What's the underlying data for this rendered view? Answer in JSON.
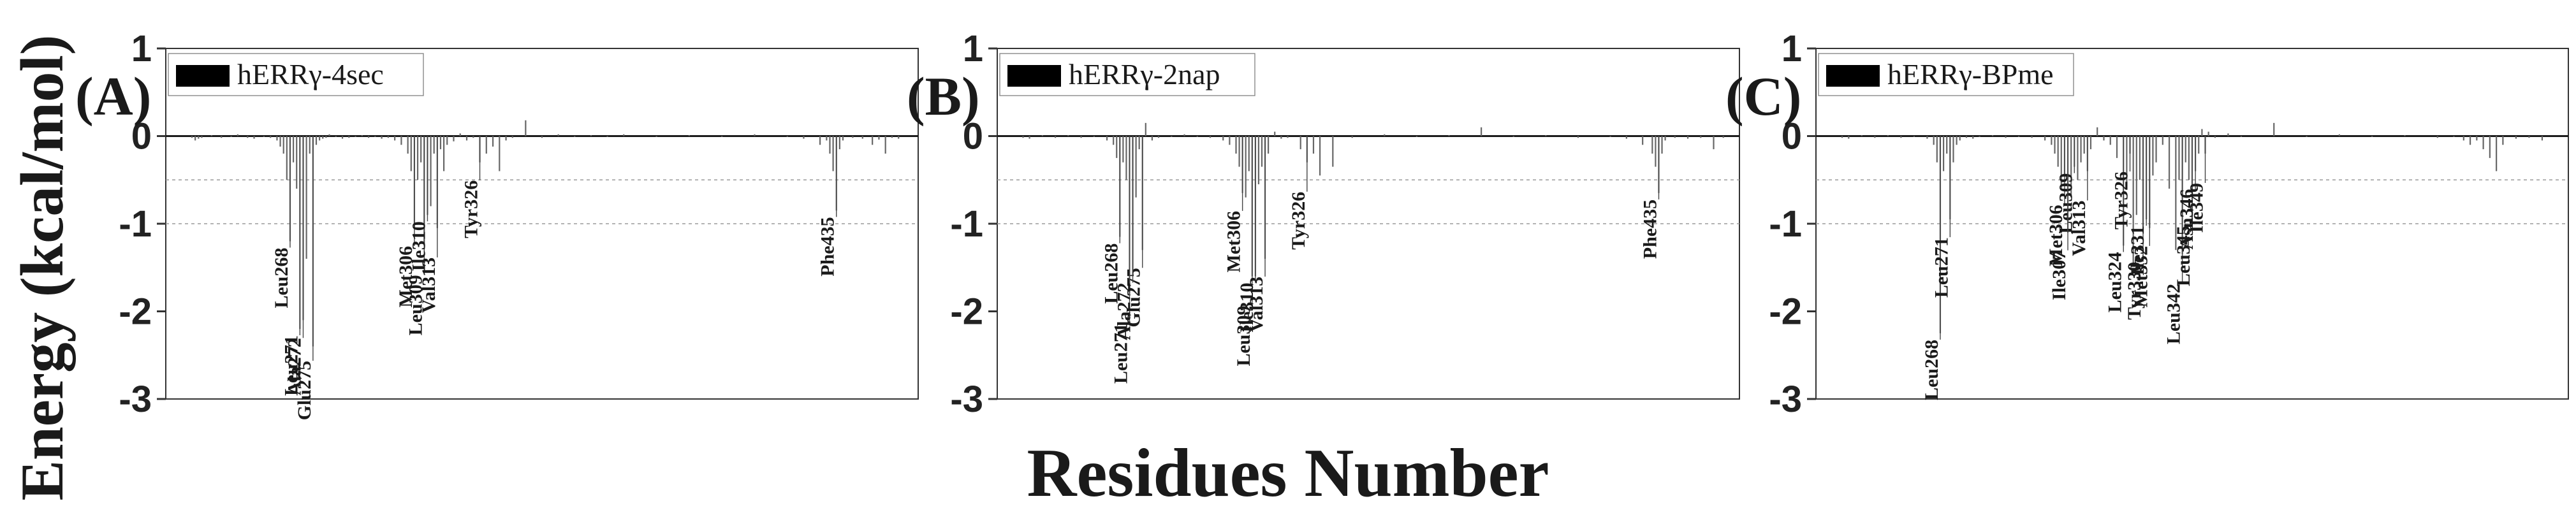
{
  "figure": {
    "ylabel": "Energy (kcal/mol)",
    "xlabel": "Residues Number"
  },
  "chart_data": [
    {
      "type": "bar",
      "panel_label": "(A)",
      "legend": "hERRγ-4sec",
      "legend_position": "top-left",
      "ylim": [
        -3,
        1
      ],
      "yticks": [
        "1",
        "0",
        "-1",
        "-2",
        "-3"
      ],
      "ylabel": "Energy (kcal/mol)",
      "xlabel": "Residues Number",
      "xlim": [
        230,
        460
      ],
      "reference_lines": [
        -0.5,
        -1.0
      ],
      "residues": [
        238,
        239,
        240,
        241,
        244,
        247,
        250,
        252,
        255,
        257,
        260,
        262,
        264,
        265,
        266,
        267,
        268,
        269,
        270,
        271,
        272,
        273,
        274,
        275,
        276,
        277,
        278,
        279,
        280,
        282,
        284,
        286,
        288,
        290,
        292,
        294,
        296,
        298,
        300,
        302,
        304,
        305,
        306,
        307,
        308,
        309,
        310,
        311,
        312,
        313,
        314,
        315,
        316,
        318,
        320,
        322,
        324,
        326,
        328,
        330,
        332,
        334,
        336,
        340,
        345,
        350,
        355,
        360,
        365,
        370,
        380,
        390,
        400,
        410,
        420,
        425,
        430,
        432,
        433,
        434,
        435,
        436,
        437,
        440,
        443,
        446,
        448,
        450,
        452,
        454
      ],
      "values": [
        -0.02,
        -0.05,
        -0.03,
        -0.02,
        0.01,
        -0.02,
        -0.01,
        0.02,
        -0.02,
        -0.03,
        -0.01,
        -0.02,
        -0.05,
        -0.12,
        -0.2,
        -0.5,
        -1.2,
        -0.3,
        -0.6,
        -2.2,
        -2.1,
        -1.4,
        -0.2,
        -2.4,
        -0.1,
        -0.05,
        -0.03,
        -0.02,
        0.02,
        -0.01,
        -0.03,
        -0.02,
        -0.01,
        0.01,
        -0.02,
        -0.01,
        -0.03,
        -0.02,
        -0.05,
        -0.1,
        -0.2,
        -0.4,
        -1.05,
        -0.5,
        -0.3,
        -1.25,
        -0.9,
        -0.8,
        -0.2,
        -1.05,
        -0.15,
        -0.4,
        -0.1,
        -0.06,
        0.03,
        -0.05,
        -0.02,
        -0.3,
        -0.2,
        -0.12,
        -0.4,
        -0.05,
        -0.02,
        0.18,
        -0.02,
        0.02,
        -0.01,
        0.01,
        -0.01,
        0.02,
        -0.01,
        0.01,
        -0.01,
        0.02,
        -0.01,
        -0.03,
        -0.1,
        -0.05,
        -0.2,
        -0.4,
        -0.85,
        -0.15,
        -0.05,
        -0.02,
        -0.03,
        -0.1,
        -0.04,
        -0.2,
        -0.02,
        -0.03
      ],
      "annotations": [
        {
          "text": "Leu268",
          "residue": 268,
          "value": -1.2
        },
        {
          "text": "Met306",
          "residue": 306,
          "value": -1.05
        },
        {
          "text": "Leu309",
          "residue": 309,
          "value": -1.25
        },
        {
          "text": "Ile310",
          "residue": 310,
          "value": -0.9
        },
        {
          "text": "Tyr326",
          "residue": 326,
          "value": -0.3
        },
        {
          "text": "Val313",
          "residue": 313,
          "value": -1.05
        },
        {
          "text": "Leu271",
          "residue": 271,
          "value": -2.2
        },
        {
          "text": "Ala272",
          "residue": 272,
          "value": -2.1
        },
        {
          "text": "Glu275",
          "residue": 275,
          "value": -2.4
        },
        {
          "text": "Phe435",
          "residue": 435,
          "value": -0.85
        }
      ]
    },
    {
      "type": "bar",
      "panel_label": "(B)",
      "legend": "hERRγ-2nap",
      "legend_position": "top-left",
      "ylim": [
        -3,
        1
      ],
      "yticks": [
        "1",
        "0",
        "-1",
        "-2",
        "-3"
      ],
      "ylabel": "Energy (kcal/mol)",
      "xlabel": "Residues Number",
      "xlim": [
        230,
        460
      ],
      "reference_lines": [
        -0.5,
        -1.0
      ],
      "residues": [
        238,
        240,
        244,
        248,
        252,
        256,
        260,
        264,
        266,
        267,
        268,
        269,
        270,
        271,
        272,
        273,
        274,
        275,
        276,
        278,
        280,
        284,
        288,
        292,
        296,
        300,
        302,
        304,
        305,
        306,
        307,
        308,
        309,
        310,
        311,
        312,
        313,
        314,
        316,
        318,
        320,
        324,
        326,
        328,
        330,
        334,
        340,
        350,
        360,
        370,
        380,
        390,
        400,
        410,
        420,
        425,
        430,
        433,
        434,
        435,
        436,
        437,
        440,
        444,
        448,
        452,
        455
      ],
      "values": [
        -0.02,
        -0.03,
        0.01,
        -0.02,
        0.01,
        -0.02,
        -0.01,
        -0.05,
        -0.1,
        -0.25,
        -1.15,
        -0.3,
        -0.5,
        -1.8,
        -1.6,
        -0.7,
        -0.15,
        -1.3,
        0.15,
        -0.05,
        -0.02,
        -0.01,
        0.02,
        -0.01,
        -0.02,
        -0.05,
        -0.1,
        -0.2,
        -0.35,
        -0.65,
        -0.7,
        -0.4,
        -1.6,
        -1.6,
        -0.55,
        -0.35,
        -1.4,
        -0.2,
        0.05,
        -0.03,
        -0.02,
        -0.15,
        -0.3,
        -0.2,
        -0.45,
        -0.35,
        -0.02,
        0.02,
        -0.01,
        0.01,
        0.1,
        -0.01,
        0.01,
        -0.02,
        -0.01,
        -0.03,
        -0.1,
        -0.2,
        -0.35,
        -0.65,
        -0.2,
        -0.05,
        -0.02,
        -0.03,
        -0.02,
        -0.15,
        -0.02
      ],
      "annotations": [
        {
          "text": "Leu268",
          "residue": 268,
          "value": -1.15
        },
        {
          "text": "Glu275",
          "residue": 275,
          "value": -1.3
        },
        {
          "text": "Leu271",
          "residue": 271,
          "value": -1.8
        },
        {
          "text": "Ala272",
          "residue": 272,
          "value": -1.6
        },
        {
          "text": "Met306",
          "residue": 306,
          "value": -0.65
        },
        {
          "text": "Leu309",
          "residue": 309,
          "value": -1.6
        },
        {
          "text": "Ile310",
          "residue": 310,
          "value": -1.6
        },
        {
          "text": "Val313",
          "residue": 313,
          "value": -1.4
        },
        {
          "text": "Tyr326",
          "residue": 326,
          "value": -0.3
        },
        {
          "text": "Phe435",
          "residue": 435,
          "value": -0.65
        }
      ]
    },
    {
      "type": "bar",
      "panel_label": "(C)",
      "legend": "hERRγ-BPme",
      "legend_position": "top-left",
      "ylim": [
        -3,
        1
      ],
      "yticks": [
        "1",
        "0",
        "-1",
        "-2",
        "-3"
      ],
      "ylabel": "Energy (kcal/mol)",
      "xlabel": "Residues Number",
      "xlim": [
        230,
        460
      ],
      "reference_lines": [
        -0.5,
        -1.0
      ],
      "residues": [
        238,
        240,
        244,
        248,
        252,
        256,
        260,
        264,
        266,
        267,
        268,
        269,
        270,
        271,
        272,
        273,
        274,
        276,
        278,
        280,
        284,
        288,
        292,
        296,
        300,
        302,
        303,
        304,
        305,
        306,
        307,
        308,
        309,
        310,
        311,
        312,
        313,
        314,
        316,
        318,
        320,
        322,
        324,
        325,
        326,
        327,
        328,
        329,
        330,
        331,
        332,
        333,
        334,
        336,
        338,
        340,
        341,
        342,
        343,
        344,
        345,
        346,
        347,
        348,
        349,
        350,
        352,
        356,
        360,
        370,
        380,
        390,
        400,
        410,
        420,
        425,
        428,
        430,
        432,
        434,
        436,
        438,
        440,
        444,
        448,
        452
      ],
      "values": [
        -0.02,
        -0.03,
        0.01,
        -0.02,
        0.01,
        -0.02,
        -0.01,
        -0.03,
        -0.1,
        -0.3,
        -2.25,
        -0.4,
        -0.2,
        -0.95,
        -0.3,
        -0.1,
        -0.05,
        -0.02,
        -0.03,
        -0.01,
        0.01,
        -0.02,
        -0.01,
        -0.02,
        -0.05,
        -0.1,
        -0.2,
        -0.35,
        -0.6,
        -0.45,
        -1.1,
        -0.7,
        -0.35,
        -0.5,
        -0.3,
        -0.2,
        -0.4,
        -0.15,
        0.1,
        -0.05,
        -0.1,
        -0.25,
        -1.25,
        -0.6,
        -0.2,
        -1.45,
        -0.9,
        -0.5,
        -1.1,
        -0.95,
        -1.05,
        -0.45,
        -0.3,
        -0.1,
        -0.6,
        -1.3,
        -0.5,
        -1.35,
        -0.3,
        -0.5,
        -0.95,
        -0.4,
        -0.2,
        0.08,
        -0.2,
        0.05,
        -0.02,
        0.03,
        -0.01,
        0.15,
        -0.01,
        0.02,
        -0.01,
        0.01,
        -0.02,
        -0.01,
        -0.05,
        -0.1,
        -0.05,
        -0.15,
        -0.25,
        -0.4,
        -0.1,
        -0.03,
        -0.02,
        -0.05
      ],
      "annotations": [
        {
          "text": "Leu268",
          "residue": 268,
          "value": -2.25
        },
        {
          "text": "Leu271",
          "residue": 271,
          "value": -0.95
        },
        {
          "text": "Met306",
          "residue": 306,
          "value": -0.45
        },
        {
          "text": "Leu309",
          "residue": 309,
          "value": -0.35
        },
        {
          "text": "Ile307",
          "residue": 307,
          "value": -1.1
        },
        {
          "text": "Val313",
          "residue": 313,
          "value": -0.4
        },
        {
          "text": "Leu324",
          "residue": 324,
          "value": -1.25
        },
        {
          "text": "Tyr326",
          "residue": 326,
          "value": -0.2
        },
        {
          "text": "Tyr330",
          "residue": 330,
          "value": -1.1
        },
        {
          "text": "Ile331",
          "residue": 331,
          "value": -0.95
        },
        {
          "text": "Met332",
          "residue": 332,
          "value": -1.05
        },
        {
          "text": "Leu342",
          "residue": 342,
          "value": -1.35
        },
        {
          "text": "Leu345",
          "residue": 345,
          "value": -0.95
        },
        {
          "text": "Asn346",
          "residue": 346,
          "value": -0.4
        },
        {
          "text": "Ile349",
          "residue": 349,
          "value": -0.2
        }
      ]
    }
  ]
}
